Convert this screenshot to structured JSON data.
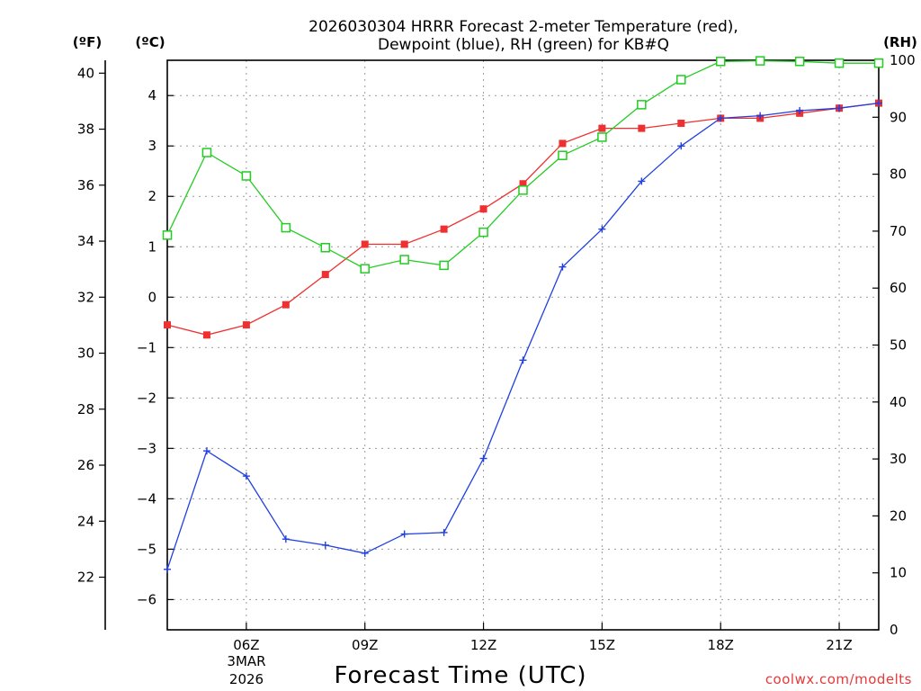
{
  "chart_data": {
    "type": "line",
    "title_lines": [
      "2026030304 HRRR Forecast 2-meter Temperature (red),",
      "Dewpoint (blue), RH (green) for KB#Q"
    ],
    "xlabel": "Forecast Time (UTC)",
    "x_ticks": [
      {
        "hour": 6,
        "label": "06Z"
      },
      {
        "hour": 9,
        "label": "09Z"
      },
      {
        "hour": 12,
        "label": "12Z"
      },
      {
        "hour": 15,
        "label": "15Z"
      },
      {
        "hour": 18,
        "label": "18Z"
      },
      {
        "hour": 21,
        "label": "21Z"
      }
    ],
    "date_label_lines": [
      "3MAR",
      "2026"
    ],
    "x": [
      4,
      5,
      6,
      7,
      8,
      9,
      10,
      11,
      12,
      13,
      14,
      15,
      16,
      17,
      18,
      19,
      20,
      21,
      22
    ],
    "xlim": [
      4,
      22
    ],
    "celsius_axis": {
      "unit_label": "(ºC)",
      "ylim": [
        -6.6,
        4.7
      ],
      "ticks": [
        -6,
        -5,
        -4,
        -3,
        -2,
        -1,
        0,
        1,
        2,
        3,
        4
      ]
    },
    "fahrenheit_axis": {
      "unit_label": "(ºF)",
      "ticks": [
        22,
        24,
        26,
        28,
        30,
        32,
        34,
        36,
        38,
        40
      ]
    },
    "rh_axis": {
      "unit_label": "(RH)",
      "ylim": [
        0,
        100
      ],
      "ticks": [
        0,
        10,
        20,
        30,
        40,
        50,
        60,
        70,
        80,
        90,
        100
      ]
    },
    "series": [
      {
        "name": "Temperature",
        "axis": "celsius",
        "color": "#ee3030",
        "marker": "filled-square",
        "values": [
          -0.55,
          -0.75,
          -0.55,
          -0.15,
          0.45,
          1.05,
          1.05,
          1.35,
          1.75,
          2.25,
          3.05,
          3.35,
          3.35,
          3.45,
          3.55,
          3.55,
          3.65,
          3.75,
          3.85
        ]
      },
      {
        "name": "Dewpoint",
        "axis": "celsius",
        "color": "#2040e0",
        "marker": "plus",
        "values": [
          -5.4,
          -3.05,
          -3.55,
          -4.8,
          -4.92,
          -5.08,
          -4.7,
          -4.67,
          -3.2,
          -1.25,
          0.6,
          1.35,
          2.3,
          3.0,
          3.55,
          3.6,
          3.7,
          3.75,
          3.85
        ]
      },
      {
        "name": "RH",
        "axis": "rh",
        "color": "#22cc22",
        "marker": "open-square",
        "values": [
          69.3,
          83.8,
          79.7,
          70.6,
          67.1,
          63.4,
          65.0,
          64.0,
          69.8,
          77.2,
          83.3,
          86.5,
          92.2,
          96.6,
          99.8,
          99.9,
          99.8,
          99.5,
          99.5
        ]
      }
    ]
  },
  "credit": "coolwx.com/modelts"
}
